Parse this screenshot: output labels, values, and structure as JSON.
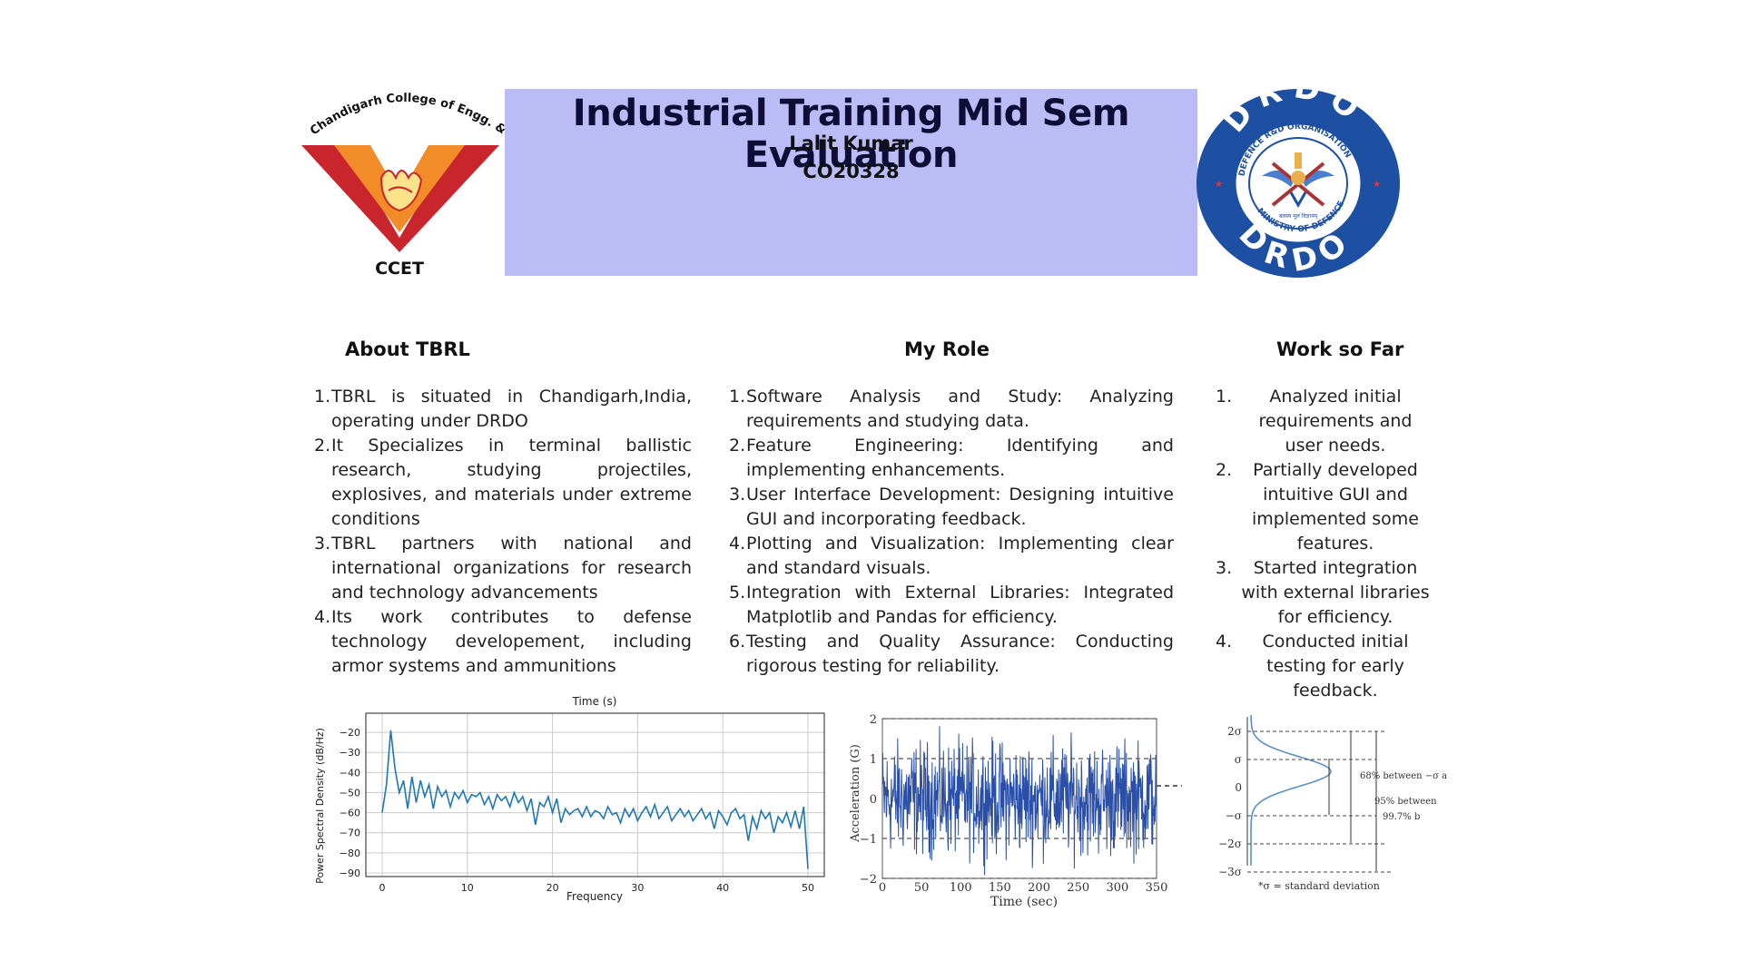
{
  "header": {
    "title": "Industrial Training Mid Sem Evaluation",
    "name": "Lalit Kumar",
    "roll": "CO20328"
  },
  "logos": {
    "left": {
      "arc_text": "Chandigarh College of Engg. & Tech.",
      "label": "CCET",
      "colors": [
        "#c8262c",
        "#f28c28"
      ]
    },
    "right": {
      "top_text": "DRDO",
      "ring_text_top": "DEFENCE R&D ORGANISATION",
      "ring_text_bottom": "MINISTRY OF DEFENCE",
      "bottom_text": "DRDO",
      "motto": "बलस्य मूलं विज्ञानम्",
      "colors": [
        "#1d4fa3",
        "#ffffff"
      ]
    }
  },
  "sections": {
    "about": {
      "heading": "About TBRL",
      "items": [
        {
          "num": "1.",
          "text": "TBRL is situated in Chandigarh,India, operating under DRDO"
        },
        {
          "num": "2.",
          "text": "It Specializes in terminal ballistic research, studying projectiles, explosives, and materials under extreme conditions"
        },
        {
          "num": "3.",
          "text": "TBRL partners with national and international organizations for research and technology advancements"
        },
        {
          "num": "4.",
          "text": "Its work contributes to defense technology developement, including armor systems and ammunitions"
        }
      ]
    },
    "role": {
      "heading": "My Role",
      "items": [
        {
          "num": "1.",
          "text": "Software Analysis and Study: Analyzing requirements and studying data."
        },
        {
          "num": "2.",
          "text": "Feature Engineering: Identifying and implementing enhancements."
        },
        {
          "num": "3.",
          "text": "User Interface Development: Designing intuitive GUI and incorporating feedback."
        },
        {
          "num": "4.",
          "text": " Plotting and Visualization: Implementing clear and standard visuals."
        },
        {
          "num": "5.",
          "text": "Integration with External Libraries: Integrated Matplotlib and Pandas for efficiency."
        },
        {
          "num": "6.",
          "text": "Testing and Quality Assurance: Conducting rigorous testing for reliability."
        }
      ]
    },
    "work": {
      "heading": "Work so Far",
      "items": [
        {
          "num": "1.",
          "text": "Analyzed initial requirements and user needs."
        },
        {
          "num": "2.",
          "text": "Partially developed intuitive GUI and implemented some features."
        },
        {
          "num": "3.",
          "text": "Started integration with external libraries for efficiency."
        },
        {
          "num": "4.",
          "text": "Conducted initial testing for early feedback."
        }
      ]
    }
  },
  "figures": {
    "psd": {
      "title": "Time (s)",
      "xlabel": "Frequency",
      "ylabel": "Power Spectral Density (dB/Hz)",
      "xticks": [
        "0",
        "10",
        "20",
        "30",
        "40",
        "50"
      ],
      "yticks": [
        "−20",
        "−30",
        "−40",
        "−50",
        "−60",
        "−70",
        "−80",
        "−90"
      ],
      "line_color": "#1f77b4"
    },
    "accel": {
      "xlabel": "Time (sec)",
      "ylabel": "Acceleration (G)",
      "xticks": [
        "0",
        "50",
        "100",
        "150",
        "200",
        "250",
        "300",
        "350"
      ],
      "yticks": [
        "2",
        "1",
        "0",
        "−1",
        "−2"
      ],
      "line_color": "#2a4fa8"
    },
    "gauss": {
      "yticks": [
        "2σ",
        "σ",
        "0",
        "−σ",
        "−2σ",
        "−3σ"
      ],
      "annot_68": "68% between −σ a",
      "annot_95": "95% between",
      "annot_997": "99.7% b",
      "footnote": "*σ = standard deviation",
      "curve_color": "#5b8fc9"
    }
  },
  "chart_data": [
    {
      "type": "line",
      "title": "Time (s)",
      "xlabel": "Frequency",
      "ylabel": "Power Spectral Density (dB/Hz)",
      "xlim": [
        0,
        50
      ],
      "ylim": [
        -90,
        -15
      ],
      "grid": true,
      "x": [
        0,
        0.5,
        1,
        1.5,
        2,
        2.5,
        3,
        3.5,
        4,
        4.5,
        5,
        5.5,
        6,
        6.5,
        7,
        7.5,
        8,
        8.5,
        9,
        9.5,
        10,
        10.5,
        11,
        11.5,
        12,
        12.5,
        13,
        13.5,
        14,
        14.5,
        15,
        15.5,
        16,
        16.5,
        17,
        17.5,
        18,
        18.5,
        19,
        19.5,
        20,
        20.5,
        21,
        21.5,
        22,
        22.5,
        23,
        23.5,
        24,
        24.5,
        25,
        25.5,
        26,
        26.5,
        27,
        27.5,
        28,
        28.5,
        29,
        29.5,
        30,
        30.5,
        31,
        31.5,
        32,
        32.5,
        33,
        33.5,
        34,
        34.5,
        35,
        35.5,
        36,
        36.5,
        37,
        37.5,
        38,
        38.5,
        39,
        39.5,
        40,
        40.5,
        41,
        41.5,
        42,
        42.5,
        43,
        43.5,
        44,
        44.5,
        45,
        45.5,
        46,
        46.5,
        47,
        47.5,
        48,
        48.5,
        49,
        49.5,
        50
      ],
      "y": [
        -60,
        -46,
        -19,
        -38,
        -50,
        -44,
        -58,
        -42,
        -55,
        -44,
        -52,
        -46,
        -58,
        -47,
        -52,
        -49,
        -57,
        -50,
        -53,
        -49,
        -55,
        -51,
        -52,
        -50,
        -56,
        -52,
        -58,
        -51,
        -54,
        -52,
        -57,
        -50,
        -55,
        -52,
        -59,
        -53,
        -66,
        -55,
        -57,
        -52,
        -60,
        -53,
        -65,
        -58,
        -61,
        -59,
        -58,
        -62,
        -57,
        -62,
        -59,
        -60,
        -63,
        -57,
        -61,
        -60,
        -65,
        -58,
        -62,
        -58,
        -64,
        -60,
        -57,
        -62,
        -56,
        -63,
        -60,
        -57,
        -64,
        -61,
        -58,
        -62,
        -59,
        -64,
        -61,
        -58,
        -63,
        -60,
        -68,
        -59,
        -62,
        -66,
        -60,
        -58,
        -63,
        -61,
        -74,
        -62,
        -68,
        -59,
        -63,
        -60,
        -70,
        -62,
        -65,
        -60,
        -67,
        -59,
        -68,
        -57,
        -88
      ]
    },
    {
      "type": "line",
      "xlabel": "Time (sec)",
      "ylabel": "Acceleration (G)",
      "xlim": [
        0,
        350
      ],
      "ylim": [
        -2,
        2
      ],
      "grid": false,
      "description_values": "random vibration signal oscillating roughly between -2 and 2 G across 0-350 s"
    },
    {
      "type": "area",
      "yticks": [
        "2σ",
        "σ",
        "0",
        "−σ",
        "−2σ",
        "−3σ"
      ],
      "bands": [
        {
          "label": "68% between −σ a",
          "range": [
            -1,
            1
          ]
        },
        {
          "label": "95% between",
          "range": [
            -2,
            2
          ]
        },
        {
          "label": "99.7% b",
          "range": [
            -3,
            3
          ]
        }
      ]
    }
  ]
}
